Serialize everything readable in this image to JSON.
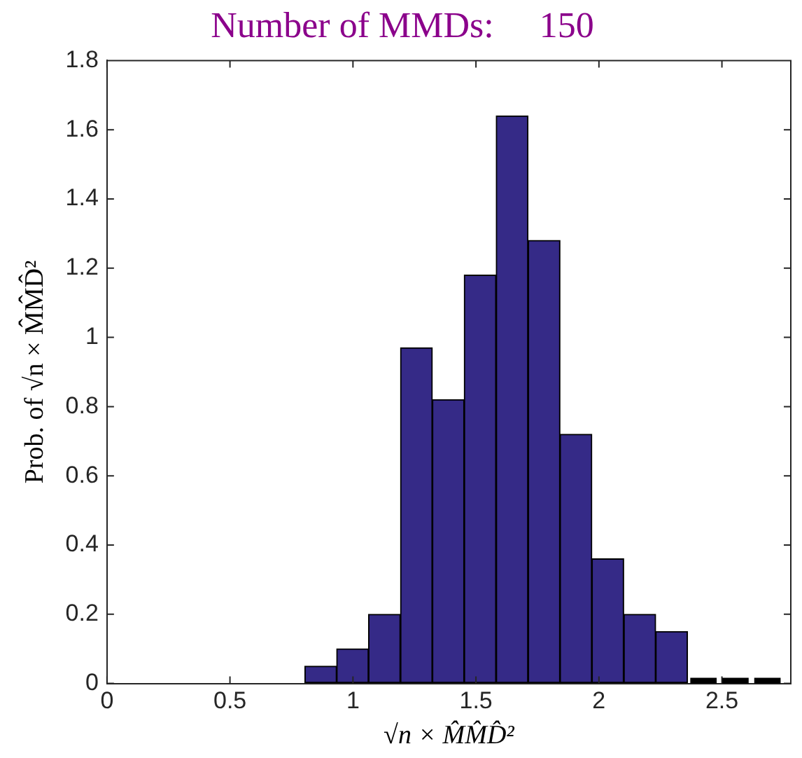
{
  "chart_data": {
    "type": "histogram",
    "title": "Number of MMDs:     150",
    "xlabel": "√n × M̂M̂D̂²",
    "ylabel": "Prob. of √n × M̂M̂D̂²",
    "bins": [
      0.804,
      0.934,
      1.063,
      1.193,
      1.323,
      1.452,
      1.582,
      1.712,
      1.842,
      1.971,
      2.101,
      2.231,
      2.36,
      2.49,
      2.62,
      2.75
    ],
    "values": [
      0.05,
      0.1,
      0.2,
      0.97,
      0.82,
      1.18,
      1.64,
      1.28,
      0.72,
      0.36,
      0.2,
      0.15,
      0,
      0,
      0
    ],
    "color": "#352a87",
    "xlim": [
      0,
      2.78
    ],
    "xticks": [
      0,
      0.5,
      1,
      1.5,
      2,
      2.5
    ],
    "ylim": [
      0,
      1.8
    ],
    "yticks": [
      0,
      0.2,
      0.4,
      0.6,
      0.8,
      1,
      1.2,
      1.4,
      1.6,
      1.8
    ],
    "grid": false,
    "legend": false
  }
}
